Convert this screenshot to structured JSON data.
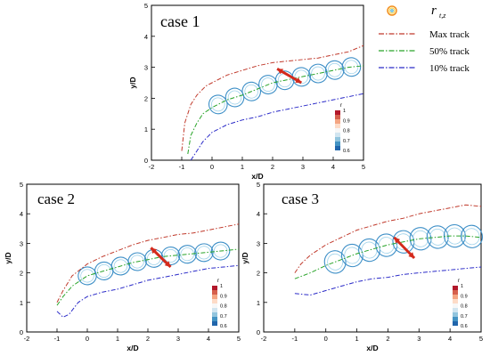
{
  "legend": {
    "symbol_label_main": "r",
    "symbol_label_sub": "t,z",
    "entries": [
      {
        "label": "Max track",
        "color": "#c0392b",
        "dash": "dash-dot"
      },
      {
        "label": "50% track",
        "color": "#27a327",
        "dash": "dash-dot"
      },
      {
        "label": "10% track",
        "color": "#2b2bc8",
        "dash": "dash-dot"
      }
    ],
    "symbol_colors": [
      "#f28e1c",
      "#f7d14a",
      "#3aa8d8"
    ]
  },
  "colorbar": {
    "title": "r",
    "ticks": [
      "1",
      "0.9",
      "0.8",
      "0.7",
      "0.6"
    ],
    "values": [
      1,
      0.9,
      0.8,
      0.7,
      0.6
    ],
    "colors": [
      "#b2182b",
      "#d6604d",
      "#f4a582",
      "#fddbc7",
      "#f7f7f7",
      "#d1e5f0",
      "#92c5de",
      "#4393c3",
      "#2166ac"
    ]
  },
  "chart_data": [
    {
      "type": "line",
      "panel": "case 1",
      "xlabel": "x/D",
      "ylabel": "y/D",
      "xlim": [
        -2,
        5
      ],
      "ylim": [
        0,
        5
      ],
      "xticks": [
        "-2",
        "-1",
        "0",
        "1",
        "2",
        "3",
        "4",
        "5"
      ],
      "yticks": [
        "0",
        "1",
        "2",
        "3",
        "4",
        "5"
      ],
      "series": [
        {
          "name": "Max track",
          "color": "#c0392b",
          "x": [
            -1,
            -0.9,
            -0.7,
            -0.5,
            -0.2,
            0,
            0.5,
            1,
            1.5,
            2,
            2.5,
            3,
            3.5,
            4,
            4.5,
            5
          ],
          "y": [
            0.3,
            1.2,
            1.8,
            2.1,
            2.4,
            2.5,
            2.75,
            2.9,
            3.05,
            3.15,
            3.2,
            3.25,
            3.3,
            3.4,
            3.5,
            3.7
          ]
        },
        {
          "name": "50% track",
          "color": "#27a327",
          "x": [
            -0.8,
            -0.7,
            -0.5,
            -0.3,
            0,
            0.5,
            1,
            1.5,
            2,
            2.5,
            3,
            3.5,
            4,
            4.5,
            5
          ],
          "y": [
            0.2,
            0.8,
            1.2,
            1.5,
            1.7,
            1.95,
            2.1,
            2.3,
            2.5,
            2.6,
            2.7,
            2.8,
            2.9,
            3.0,
            3.05
          ]
        },
        {
          "name": "10% track",
          "color": "#2b2bc8",
          "x": [
            -0.7,
            -0.5,
            -0.3,
            0,
            0.5,
            1,
            1.5,
            2,
            2.5,
            3,
            3.5,
            4,
            4.5,
            5
          ],
          "y": [
            0.0,
            0.3,
            0.6,
            0.9,
            1.15,
            1.3,
            1.4,
            1.55,
            1.65,
            1.75,
            1.85,
            1.95,
            2.05,
            2.15
          ]
        }
      ],
      "arrow": {
        "x1": 2.15,
        "y1": 2.95,
        "x2": 2.95,
        "y2": 2.5
      }
    },
    {
      "type": "line",
      "panel": "case 2",
      "xlabel": "x/D",
      "ylabel": "y/D",
      "xlim": [
        -2,
        5
      ],
      "ylim": [
        0,
        5
      ],
      "xticks": [
        "-2",
        "-1",
        "0",
        "1",
        "2",
        "3",
        "4",
        "5"
      ],
      "yticks": [
        "0",
        "1",
        "2",
        "3",
        "4",
        "5"
      ],
      "series": [
        {
          "name": "Max track",
          "color": "#c0392b",
          "x": [
            -1,
            -0.8,
            -0.5,
            0,
            0.5,
            1,
            1.5,
            2,
            2.5,
            3,
            3.5,
            4,
            4.5,
            5
          ],
          "y": [
            1.0,
            1.4,
            1.9,
            2.3,
            2.55,
            2.75,
            2.95,
            3.1,
            3.2,
            3.3,
            3.35,
            3.45,
            3.55,
            3.65
          ]
        },
        {
          "name": "50% track",
          "color": "#27a327",
          "x": [
            -1,
            -0.8,
            -0.5,
            0,
            0.5,
            1,
            1.5,
            2,
            2.5,
            3,
            3.5,
            4,
            4.5,
            5
          ],
          "y": [
            0.9,
            1.2,
            1.55,
            1.9,
            2.05,
            2.2,
            2.35,
            2.45,
            2.55,
            2.6,
            2.65,
            2.7,
            2.75,
            2.8
          ]
        },
        {
          "name": "10% track",
          "color": "#2b2bc8",
          "x": [
            -1,
            -0.8,
            -0.6,
            -0.3,
            0,
            0.5,
            1,
            1.5,
            2,
            2.5,
            3,
            3.5,
            4,
            4.5,
            5
          ],
          "y": [
            0.7,
            0.5,
            0.6,
            1.0,
            1.2,
            1.35,
            1.45,
            1.6,
            1.75,
            1.85,
            1.95,
            2.05,
            2.15,
            2.2,
            2.25
          ]
        }
      ],
      "arrow": {
        "x1": 2.1,
        "y1": 2.85,
        "x2": 2.75,
        "y2": 2.2
      }
    },
    {
      "type": "line",
      "panel": "case 3",
      "xlabel": "x/D",
      "ylabel": "y/D",
      "xlim": [
        -2,
        5
      ],
      "ylim": [
        0,
        5
      ],
      "xticks": [
        "-2",
        "-1",
        "0",
        "1",
        "2",
        "3",
        "4",
        "5"
      ],
      "yticks": [
        "0",
        "1",
        "2",
        "3",
        "4",
        "5"
      ],
      "series": [
        {
          "name": "Max track",
          "color": "#c0392b",
          "x": [
            -1,
            -0.8,
            -0.5,
            0,
            0.5,
            1,
            1.5,
            2,
            2.5,
            3,
            3.5,
            4,
            4.5,
            5
          ],
          "y": [
            2.0,
            2.3,
            2.6,
            2.95,
            3.2,
            3.45,
            3.6,
            3.75,
            3.85,
            4.0,
            4.1,
            4.2,
            4.3,
            4.25
          ]
        },
        {
          "name": "50% track",
          "color": "#27a327",
          "x": [
            -1,
            -0.5,
            0,
            0.5,
            1,
            1.5,
            2,
            2.5,
            3,
            3.5,
            4,
            4.5,
            5
          ],
          "y": [
            1.8,
            2.0,
            2.25,
            2.45,
            2.65,
            2.8,
            2.95,
            3.05,
            3.15,
            3.2,
            3.25,
            3.25,
            3.2
          ]
        },
        {
          "name": "10% track",
          "color": "#2b2bc8",
          "x": [
            -1,
            -0.5,
            0,
            0.5,
            1,
            1.5,
            2,
            2.5,
            3,
            3.5,
            4,
            4.5,
            5
          ],
          "y": [
            1.3,
            1.25,
            1.4,
            1.55,
            1.7,
            1.8,
            1.85,
            1.95,
            2.0,
            2.05,
            2.1,
            2.15,
            2.2
          ]
        }
      ],
      "arrow": {
        "x1": 2.2,
        "y1": 3.2,
        "x2": 2.85,
        "y2": 2.5
      }
    }
  ]
}
